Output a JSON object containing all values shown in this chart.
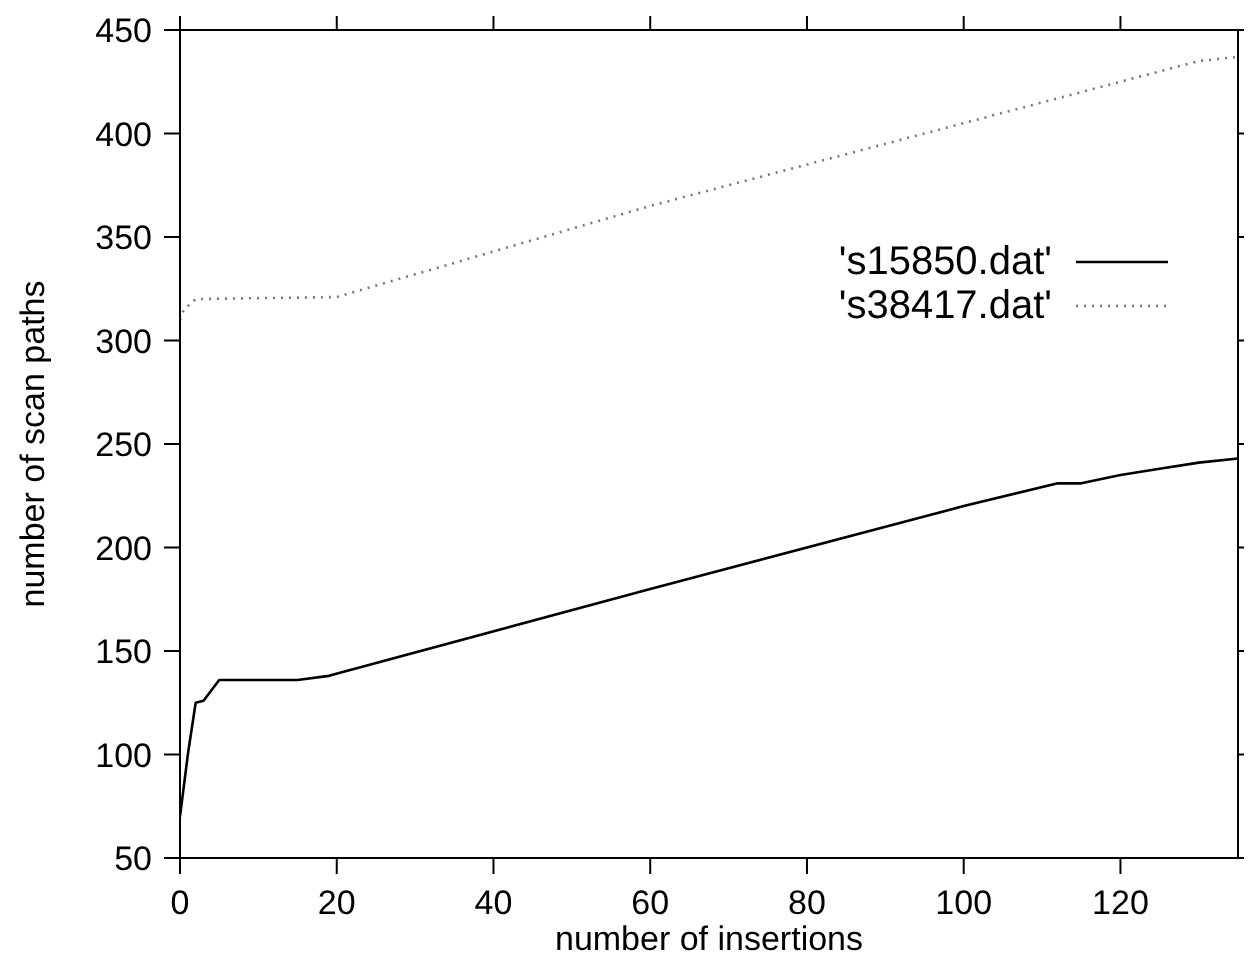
{
  "chart_data": {
    "type": "line",
    "xlabel": "number of insertions",
    "ylabel": "number of scan paths",
    "xlim": [
      0,
      135
    ],
    "ylim": [
      50,
      450
    ],
    "xticks": [
      0,
      20,
      40,
      60,
      80,
      100,
      120
    ],
    "yticks": [
      50,
      100,
      150,
      200,
      250,
      300,
      350,
      400,
      450
    ],
    "grid": false,
    "legend": "top right",
    "marker": "none",
    "series": [
      {
        "name": "'s15850.dat'",
        "color": "#000000",
        "line_style": "solid",
        "x": [
          0,
          1,
          2,
          3,
          5,
          15,
          19,
          60,
          100,
          112,
          115,
          120,
          125,
          130,
          135
        ],
        "values": [
          70,
          100,
          125,
          126,
          136,
          136,
          138,
          180,
          220,
          231,
          231,
          235,
          238,
          241,
          243
        ]
      },
      {
        "name": "'s38417.dat'",
        "color": "#777777",
        "line_style": "dotted",
        "x": [
          0,
          0.5,
          2,
          20,
          60,
          100,
          130,
          135
        ],
        "values": [
          310,
          315,
          320,
          321,
          365,
          405,
          435,
          437
        ]
      }
    ]
  }
}
